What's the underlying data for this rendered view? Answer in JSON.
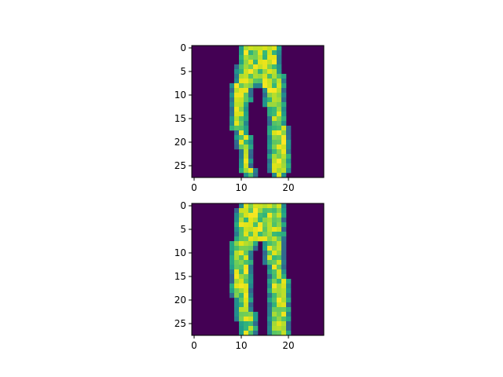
{
  "chart_data": [
    {
      "type": "heatmap",
      "title": "",
      "xlabel": "",
      "ylabel": "",
      "colormap": "viridis",
      "value_range": [
        0,
        1
      ],
      "image_shape": [
        28,
        28
      ],
      "xlim": [
        -0.5,
        27.5
      ],
      "ylim": [
        27.5,
        -0.5
      ],
      "x_ticks": [
        0,
        10,
        20
      ],
      "x_tick_labels": [
        "0",
        "10",
        "20"
      ],
      "y_ticks": [
        0,
        5,
        10,
        15,
        20,
        25
      ],
      "y_tick_labels": [
        "0",
        "5",
        "10",
        "15",
        "20",
        "25"
      ],
      "grid": false,
      "legend": "none",
      "shape": {
        "rows": [
          [
            10,
            18,
            null,
            null
          ],
          [
            10,
            18,
            null,
            null
          ],
          [
            10,
            18,
            null,
            null
          ],
          [
            10,
            18,
            null,
            null
          ],
          [
            9,
            18,
            null,
            null
          ],
          [
            9,
            18,
            null,
            null
          ],
          [
            9,
            19,
            null,
            null
          ],
          [
            9,
            19,
            null,
            null
          ],
          [
            8,
            13,
            14,
            19
          ],
          [
            8,
            12,
            15,
            19
          ],
          [
            8,
            12,
            15,
            19
          ],
          [
            8,
            12,
            15,
            19
          ],
          [
            8,
            11,
            15,
            19
          ],
          [
            8,
            11,
            16,
            19
          ],
          [
            8,
            11,
            16,
            19
          ],
          [
            8,
            11,
            16,
            19
          ],
          [
            8,
            11,
            16,
            19
          ],
          [
            8,
            11,
            16,
            20
          ],
          [
            9,
            11,
            16,
            20
          ],
          [
            9,
            12,
            16,
            20
          ],
          [
            9,
            12,
            16,
            20
          ],
          [
            9,
            12,
            16,
            20
          ],
          [
            10,
            12,
            16,
            20
          ],
          [
            10,
            12,
            16,
            20
          ],
          [
            10,
            12,
            16,
            20
          ],
          [
            10,
            12,
            16,
            20
          ],
          [
            10,
            13,
            16,
            20
          ],
          [
            11,
            13,
            17,
            19
          ]
        ]
      }
    },
    {
      "type": "heatmap",
      "title": "",
      "xlabel": "",
      "ylabel": "",
      "colormap": "viridis",
      "value_range": [
        0,
        1
      ],
      "image_shape": [
        28,
        28
      ],
      "xlim": [
        -0.5,
        27.5
      ],
      "ylim": [
        27.5,
        -0.5
      ],
      "x_ticks": [
        0,
        10,
        20
      ],
      "x_tick_labels": [
        "0",
        "10",
        "20"
      ],
      "y_ticks": [
        0,
        5,
        10,
        15,
        20,
        25
      ],
      "y_tick_labels": [
        "0",
        "5",
        "10",
        "15",
        "20",
        "25"
      ],
      "grid": false,
      "legend": "none",
      "shape": {
        "rows": [
          [
            10,
            19,
            null,
            null
          ],
          [
            9,
            19,
            null,
            null
          ],
          [
            9,
            19,
            null,
            null
          ],
          [
            9,
            19,
            null,
            null
          ],
          [
            9,
            19,
            null,
            null
          ],
          [
            9,
            19,
            null,
            null
          ],
          [
            9,
            19,
            null,
            null
          ],
          [
            9,
            19,
            null,
            null
          ],
          [
            8,
            13,
            15,
            19
          ],
          [
            8,
            13,
            15,
            19
          ],
          [
            8,
            12,
            15,
            19
          ],
          [
            8,
            12,
            15,
            19
          ],
          [
            8,
            12,
            15,
            19
          ],
          [
            8,
            12,
            16,
            19
          ],
          [
            8,
            12,
            16,
            19
          ],
          [
            8,
            12,
            16,
            19
          ],
          [
            8,
            12,
            16,
            20
          ],
          [
            8,
            12,
            16,
            20
          ],
          [
            8,
            12,
            16,
            20
          ],
          [
            8,
            12,
            16,
            20
          ],
          [
            9,
            12,
            16,
            20
          ],
          [
            9,
            12,
            16,
            20
          ],
          [
            9,
            12,
            16,
            20
          ],
          [
            9,
            13,
            16,
            20
          ],
          [
            9,
            13,
            16,
            20
          ],
          [
            10,
            13,
            16,
            20
          ],
          [
            10,
            13,
            16,
            20
          ],
          [
            10,
            13,
            16,
            20
          ]
        ]
      }
    }
  ]
}
